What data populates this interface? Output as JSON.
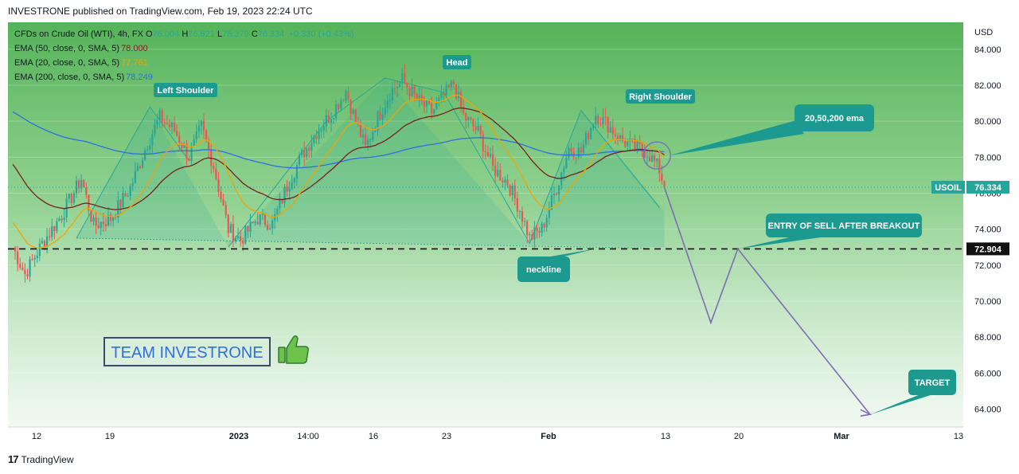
{
  "header": {
    "published": "INVESTRONE published on TradingView.com, Feb 19, 2023 22:24 UTC"
  },
  "legend": {
    "symbol": "CFDs on Crude Oil (WTI), 4h, FX",
    "ohlc": [
      {
        "k": "O",
        "v": "76.004"
      },
      {
        "k": "H",
        "v": "76.621"
      },
      {
        "k": "L",
        "v": "75.379"
      },
      {
        "k": "C",
        "v": "76.334"
      }
    ],
    "change": "+0.330 (+0.43%)",
    "ema": [
      {
        "label": "EMA (50, close, 0, SMA, 5)",
        "value": "78.000",
        "color": "#7a1f1f"
      },
      {
        "label": "EMA (20, close, 0, SMA, 5)",
        "value": "77.761",
        "color": "#f0a500"
      },
      {
        "label": "EMA (200, close, 0, SMA, 5)",
        "value": "78.249",
        "color": "#2f6fe0"
      }
    ]
  },
  "colors": {
    "up": "#26a69a",
    "down": "#ef5350",
    "ema50": "#7a1f1f",
    "ema20": "#f0a500",
    "ema200": "#2f6fe0",
    "teal": "#26a69a",
    "pattern": "#7b6fb3"
  },
  "chart_data": {
    "type": "candlestick",
    "currency": "USD",
    "ylim": [
      63,
      85.5
    ],
    "y_ticks": [
      "64.000",
      "66.000",
      "68.000",
      "70.000",
      "72.000",
      "74.000",
      "76.000",
      "78.000",
      "80.000",
      "82.000",
      "84.000"
    ],
    "x_ticks": [
      "12",
      "19",
      "2023",
      "14:00",
      "16",
      "23",
      "Feb",
      "13",
      "20",
      "Mar",
      "13"
    ],
    "price_label": {
      "symbol": "USOIL",
      "value": "76.334"
    },
    "neckline_label": "72.904",
    "neckline_value": 72.904,
    "close_path": [
      [
        0,
        73.0
      ],
      [
        5,
        71.5
      ],
      [
        12,
        73.2
      ],
      [
        20,
        74.8
      ],
      [
        28,
        76.8
      ],
      [
        33,
        74.2
      ],
      [
        40,
        74.6
      ],
      [
        48,
        76.3
      ],
      [
        55,
        78.8
      ],
      [
        60,
        80.2
      ],
      [
        66,
        79.5
      ],
      [
        72,
        78.0
      ],
      [
        77,
        79.7
      ],
      [
        82,
        77.5
      ],
      [
        88,
        74.0
      ],
      [
        93,
        73.4
      ],
      [
        100,
        74.6
      ],
      [
        106,
        74.3
      ],
      [
        112,
        76.4
      ],
      [
        118,
        78.1
      ],
      [
        124,
        79.4
      ],
      [
        130,
        80.4
      ],
      [
        136,
        81.7
      ],
      [
        140,
        80.0
      ],
      [
        144,
        78.5
      ],
      [
        149,
        80.2
      ],
      [
        154,
        81.6
      ],
      [
        159,
        82.3
      ],
      [
        165,
        81.2
      ],
      [
        171,
        80.5
      ],
      [
        176,
        81.4
      ],
      [
        180,
        82.1
      ],
      [
        184,
        80.3
      ],
      [
        190,
        79.4
      ],
      [
        196,
        77.4
      ],
      [
        202,
        76.6
      ],
      [
        207,
        75.1
      ],
      [
        211,
        73.5
      ],
      [
        216,
        74.0
      ],
      [
        222,
        76.3
      ],
      [
        227,
        78.5
      ],
      [
        232,
        78.3
      ],
      [
        238,
        80.4
      ],
      [
        243,
        79.8
      ],
      [
        248,
        79.0
      ],
      [
        253,
        78.6
      ],
      [
        259,
        78.3
      ],
      [
        264,
        77.3
      ],
      [
        266,
        76.334
      ]
    ],
    "total_bars": 266,
    "x_span_bars": 390,
    "annotations": {
      "left_shoulder": "Left Shoulder",
      "head": "Head",
      "right_shoulder": "Right Shoulder",
      "neckline": "neckline",
      "ema_note": "20,50,200 ema",
      "entry": "ENTRY OF SELL AFTER BREAKOUT",
      "target": "TARGET"
    },
    "projection": {
      "type": "line",
      "y": [
        76.334,
        68.8,
        72.904,
        63.7
      ]
    }
  },
  "watermark": {
    "text": "TEAM INVESTRONE"
  },
  "footer": {
    "logo": "17",
    "brand": "TradingView"
  }
}
